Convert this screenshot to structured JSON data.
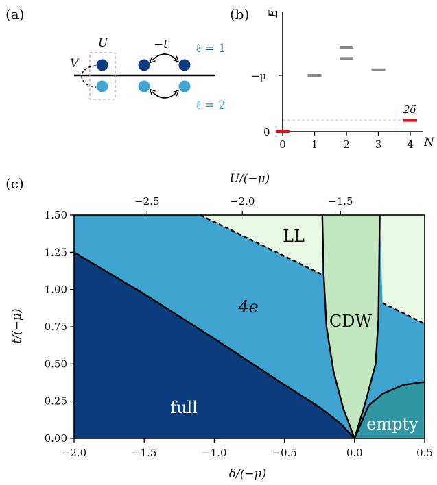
{
  "panel_a": {
    "label": "(a)",
    "U_label": "U",
    "V_label": "V",
    "hop_label": "−t",
    "orbital1_label": "ℓ = 1",
    "orbital2_label": "ℓ = 2",
    "colors": {
      "orbital1": "#0d3c80",
      "orbital2": "#3fa4d2"
    }
  },
  "panel_b": {
    "label": "(b)",
    "ylabel": "E",
    "xlabel": "N",
    "xticks": [
      "0",
      "1",
      "2",
      "3",
      "4"
    ],
    "yticks": {
      "mu": "−μ",
      "zero": "0"
    },
    "delta_label": "2δ",
    "levels": [
      {
        "N": 0,
        "E": 0,
        "color": "#e8101a"
      },
      {
        "N": 1,
        "E": 1.0,
        "color": "#888888"
      },
      {
        "N": 2,
        "E": 1.3,
        "color": "#888888"
      },
      {
        "N": 2,
        "E": 1.5,
        "color": "#888888"
      },
      {
        "N": 3,
        "E": 1.1,
        "color": "#888888"
      },
      {
        "N": 4,
        "E": 0.2,
        "color": "#e8101a"
      }
    ]
  },
  "panel_c": {
    "label": "(c)",
    "xlabel": "δ/(−μ)",
    "ylabel": "t/(−μ)",
    "toplabel": "U/(−μ)",
    "xticks": [
      "−2.0",
      "−1.5",
      "−1.0",
      "−0.5",
      "0.0",
      "0.5"
    ],
    "yticks": [
      "0.00",
      "0.25",
      "0.50",
      "0.75",
      "1.00",
      "1.25",
      "1.50"
    ],
    "top_ticks": [
      "−2.5",
      "−2.0",
      "−1.5"
    ],
    "regions": {
      "full": "full",
      "four_e": "4e",
      "LL": "LL",
      "CDW": "CDW",
      "empty": "empty"
    },
    "colors": {
      "full": "#0b3d7e",
      "four_e": "#3fa3cf",
      "LL": "#e8f6e4",
      "CDW": "#c3e8c1",
      "empty": "#2e97a3"
    }
  },
  "chart_data": {
    "type": "area",
    "xlim": [
      -2.0,
      0.5
    ],
    "ylim": [
      0.0,
      1.5
    ],
    "x_ticks": [
      -2.0,
      -1.5,
      -1.0,
      -0.5,
      0.0,
      0.5
    ],
    "y_ticks": [
      0.0,
      0.25,
      0.5,
      0.75,
      1.0,
      1.25,
      1.5
    ],
    "top_axis_ticks": [
      -2.5,
      -2.0,
      -1.5
    ],
    "xlabel": "δ/(−μ)",
    "ylabel": "t/(−μ)",
    "grid": false,
    "boundaries": {
      "full_4e": {
        "x": [
          -2.0,
          -1.5,
          -1.0,
          -0.5,
          -0.25,
          -0.1,
          0.0
        ],
        "y": [
          1.25,
          0.97,
          0.67,
          0.36,
          0.21,
          0.1,
          0.0
        ]
      },
      "ll_4e_left": {
        "x": [
          -1.1,
          -0.23
        ],
        "y": [
          1.5,
          1.1
        ]
      },
      "ll_4e_right": {
        "x": [
          0.2,
          0.5
        ],
        "y": [
          0.91,
          0.77
        ]
      },
      "cdw_left": {
        "x": [
          0.0,
          -0.08,
          -0.15,
          -0.2,
          -0.22,
          -0.23
        ],
        "y": [
          0.0,
          0.2,
          0.45,
          0.75,
          1.1,
          1.5
        ]
      },
      "cdw_right": {
        "x": [
          0.0,
          0.08,
          0.15,
          0.17,
          0.18
        ],
        "y": [
          0.0,
          0.25,
          0.5,
          0.8,
          1.5
        ]
      },
      "empty": {
        "x": [
          0.0,
          0.1,
          0.2,
          0.35,
          0.5
        ],
        "y": [
          0.0,
          0.22,
          0.3,
          0.36,
          0.38
        ]
      }
    }
  }
}
